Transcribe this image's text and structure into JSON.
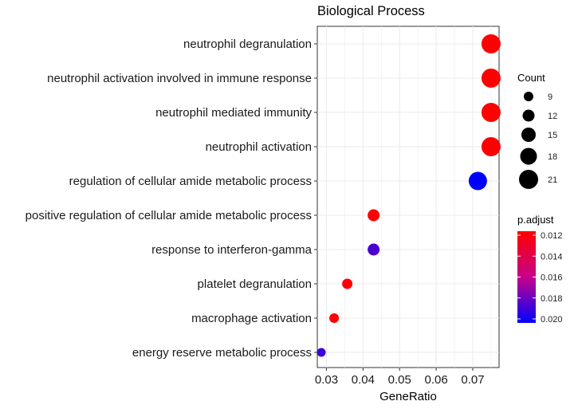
{
  "chart_data": {
    "type": "scatter",
    "title": "Biological Process",
    "xlabel": "GeneRatio",
    "ylabel": "",
    "xlim": [
      0.0275,
      0.0772
    ],
    "xticks": [
      "0.03",
      "0.04",
      "0.05",
      "0.06",
      "0.07"
    ],
    "xtick_values": [
      0.03,
      0.04,
      0.05,
      0.06,
      0.07
    ],
    "grid": true,
    "points": [
      {
        "category": "neutrophil degranulation",
        "gene_ratio": 0.075,
        "count": 21,
        "p_adjust": 0.012
      },
      {
        "category": "neutrophil activation involved in immune response",
        "gene_ratio": 0.075,
        "count": 21,
        "p_adjust": 0.012
      },
      {
        "category": "neutrophil mediated immunity",
        "gene_ratio": 0.075,
        "count": 21,
        "p_adjust": 0.012
      },
      {
        "category": "neutrophil activation",
        "gene_ratio": 0.075,
        "count": 21,
        "p_adjust": 0.012
      },
      {
        "category": "regulation of cellular amide metabolic process",
        "gene_ratio": 0.0714,
        "count": 20,
        "p_adjust": 0.0202
      },
      {
        "category": "positive regulation of cellular amide metabolic process",
        "gene_ratio": 0.0429,
        "count": 12,
        "p_adjust": 0.0122
      },
      {
        "category": "response to interferon-gamma",
        "gene_ratio": 0.0429,
        "count": 12,
        "p_adjust": 0.0185
      },
      {
        "category": "platelet degranulation",
        "gene_ratio": 0.0357,
        "count": 10,
        "p_adjust": 0.0122
      },
      {
        "category": "macrophage activation",
        "gene_ratio": 0.0321,
        "count": 9,
        "p_adjust": 0.0122
      },
      {
        "category": "energy reserve metabolic process",
        "gene_ratio": 0.0286,
        "count": 8,
        "p_adjust": 0.0188
      }
    ],
    "size_legend": {
      "title": "Count",
      "labels": [
        "9",
        "12",
        "15",
        "18",
        "21"
      ],
      "values": [
        9,
        12,
        15,
        18,
        21
      ]
    },
    "color_legend": {
      "title": "p.adjust",
      "labels": [
        "0.012",
        "0.014",
        "0.016",
        "0.018",
        "0.020"
      ],
      "values": [
        0.012,
        0.014,
        0.016,
        0.018,
        0.02
      ],
      "low_color": "#FF0000",
      "high_color": "#0000FF"
    }
  }
}
